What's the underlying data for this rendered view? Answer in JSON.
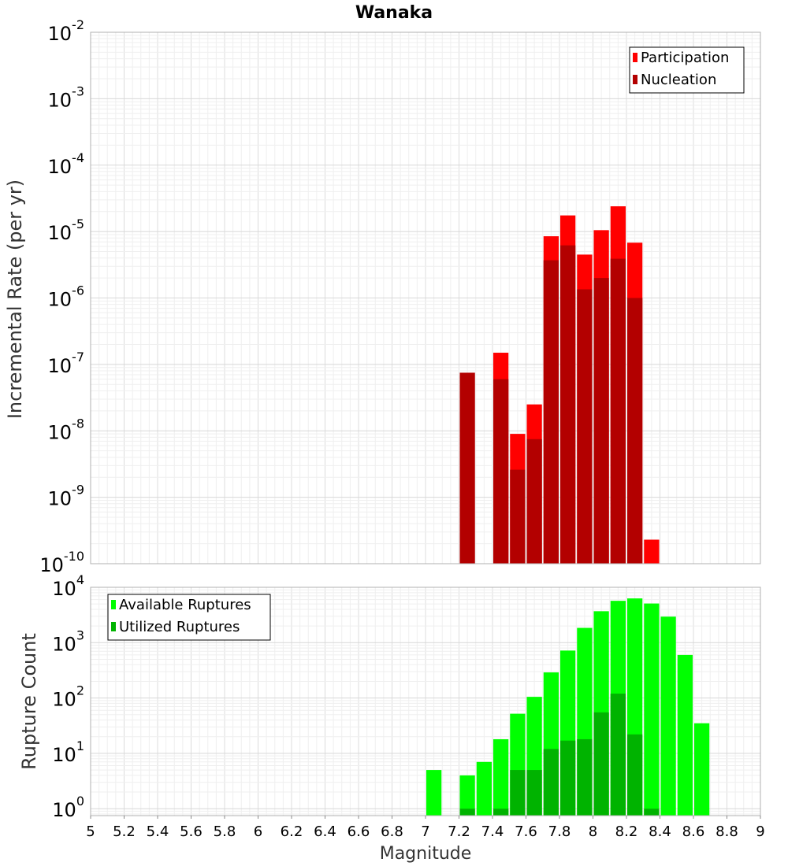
{
  "chart_data": [
    {
      "type": "bar",
      "title": "Wanaka",
      "xlabel": "",
      "ylabel": "Incremental Rate (per yr)",
      "yscale": "log",
      "ylim": [
        1e-10,
        0.01
      ],
      "xlim": [
        5,
        9
      ],
      "yticks": [
        {
          "base": "10",
          "exp": "-10",
          "value": 1e-10
        },
        {
          "base": "10",
          "exp": "-9",
          "value": 1e-09
        },
        {
          "base": "10",
          "exp": "-8",
          "value": 1e-08
        },
        {
          "base": "10",
          "exp": "-7",
          "value": 1e-07
        },
        {
          "base": "10",
          "exp": "-6",
          "value": 1e-06
        },
        {
          "base": "10",
          "exp": "-5",
          "value": 1e-05
        },
        {
          "base": "10",
          "exp": "-4",
          "value": 0.0001
        },
        {
          "base": "10",
          "exp": "-3",
          "value": 0.001
        },
        {
          "base": "10",
          "exp": "-2",
          "value": 0.01
        }
      ],
      "grid": true,
      "legend_position": "top-right",
      "bar_width": 0.1,
      "series": [
        {
          "name": "Participation",
          "color": "#ff0000",
          "x": [
            7.45,
            7.55,
            7.65,
            7.75,
            7.85,
            7.95,
            8.05,
            8.15,
            8.25,
            8.35
          ],
          "values": [
            1.5e-07,
            9e-09,
            2.5e-08,
            8.5e-06,
            1.75e-05,
            4.5e-06,
            1.05e-05,
            2.4e-05,
            6.8e-06,
            2.3e-10
          ]
        },
        {
          "name": "Nucleation",
          "color": "#b30000",
          "x": [
            7.25,
            7.45,
            7.55,
            7.65,
            7.75,
            7.85,
            7.95,
            8.05,
            8.15,
            8.25
          ],
          "values": [
            7.5e-08,
            6e-08,
            2.6e-09,
            7.5e-09,
            3.7e-06,
            6.2e-06,
            1.35e-06,
            2e-06,
            3.9e-06,
            1e-06
          ]
        }
      ]
    },
    {
      "type": "bar",
      "title": "",
      "xlabel": "Magnitude",
      "ylabel": "Rupture Count",
      "yscale": "log",
      "ylim": [
        0.75,
        10000
      ],
      "xlim": [
        5,
        9
      ],
      "xticks": [
        "5",
        "5.2",
        "5.4",
        "5.6",
        "5.8",
        "6",
        "6.2",
        "6.4",
        "6.6",
        "6.8",
        "7",
        "7.2",
        "7.4",
        "7.6",
        "7.8",
        "8",
        "8.2",
        "8.4",
        "8.6",
        "8.8",
        "9"
      ],
      "yticks": [
        {
          "base": "10",
          "exp": "0",
          "value": 1
        },
        {
          "base": "10",
          "exp": "1",
          "value": 10
        },
        {
          "base": "10",
          "exp": "2",
          "value": 100
        },
        {
          "base": "10",
          "exp": "3",
          "value": 1000
        },
        {
          "base": "10",
          "exp": "4",
          "value": 10000
        }
      ],
      "grid": true,
      "legend_position": "top-left",
      "bar_width": 0.1,
      "series": [
        {
          "name": "Available Ruptures",
          "color": "#00ff00",
          "x": [
            7.05,
            7.25,
            7.35,
            7.45,
            7.55,
            7.65,
            7.75,
            7.85,
            7.95,
            8.05,
            8.15,
            8.25,
            8.35,
            8.45,
            8.55,
            8.65
          ],
          "values": [
            5,
            4,
            7,
            18,
            52,
            105,
            290,
            720,
            1850,
            3700,
            5700,
            6300,
            5100,
            2950,
            600,
            35
          ]
        },
        {
          "name": "Utilized Ruptures",
          "color": "#00b300",
          "x": [
            7.25,
            7.45,
            7.55,
            7.65,
            7.75,
            7.85,
            7.95,
            8.05,
            8.15,
            8.25,
            8.35
          ],
          "values": [
            1,
            1,
            5,
            5,
            12,
            17,
            18,
            55,
            120,
            22,
            1
          ]
        }
      ]
    }
  ]
}
